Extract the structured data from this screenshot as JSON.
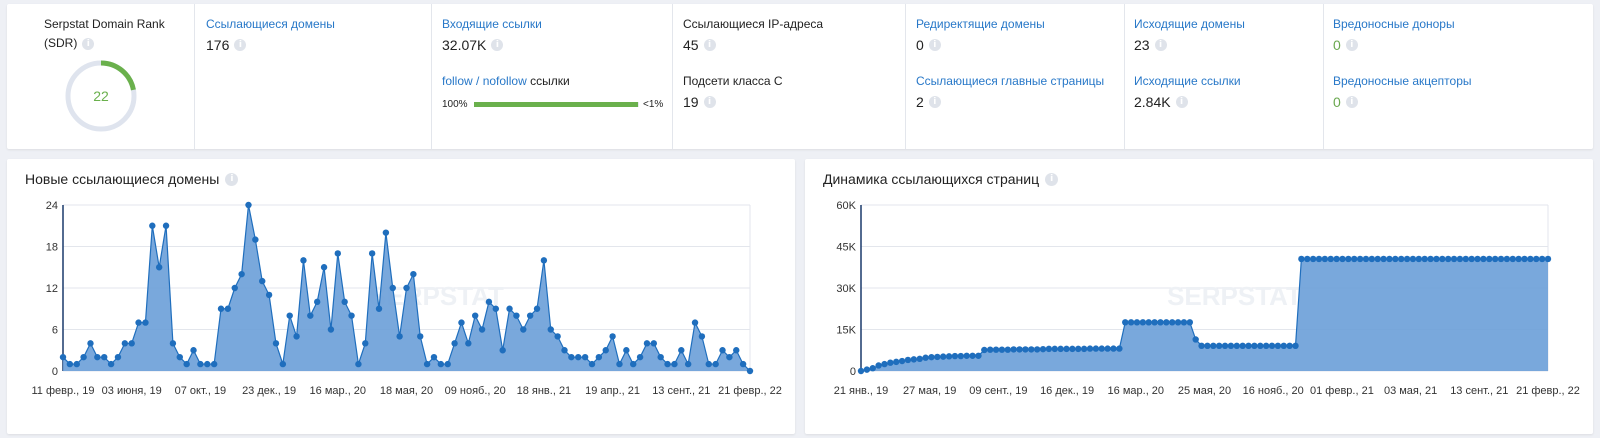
{
  "metrics": {
    "sdr": {
      "label_line1": "Serpstat Domain Rank",
      "label_line2": "(SDR)",
      "value": "22",
      "fraction": 0.22,
      "accent": "#6ab04c"
    },
    "ref_domains": {
      "label": "Ссылающиеся домены",
      "value": "176"
    },
    "backlinks": {
      "label": "Входящие ссылки",
      "value": "32.07K",
      "follow_label": "follow",
      "slash": " / ",
      "nofollow_label": "nofollow",
      "links_word": " ссылки",
      "follow_pct": "100%",
      "nofollow_pct": "<1%",
      "follow_fraction": 0.995
    },
    "ips": {
      "label": "Ссылающиеся IP-адреса",
      "value": "45",
      "subnets_label": "Подсети класса С",
      "subnets_value": "19"
    },
    "redirect": {
      "label": "Редиректящие домены",
      "value": "0",
      "main_pages_label": "Ссылающиеся главные страницы",
      "main_pages_value": "2"
    },
    "outgoing": {
      "label": "Исходящие домены",
      "value": "23",
      "links_label": "Исходящие ссылки",
      "links_value": "2.84K"
    },
    "malicious": {
      "donors_label": "Вредоносные доноры",
      "donors_value": "0",
      "acceptors_label": "Вредоносные акцепторы",
      "acceptors_value": "0"
    }
  },
  "watermark": "SERPSTAT",
  "chart_data": [
    {
      "type": "area",
      "title": "Новые ссылающиеся домены",
      "ylim": [
        0,
        24
      ],
      "yticks": [
        "0",
        "6",
        "12",
        "18",
        "24"
      ],
      "xticks": [
        "11 февр., 19",
        "03 июня, 19",
        "07 окт., 19",
        "23 дек., 19",
        "16 мар., 20",
        "18 мая, 20",
        "09 нояб., 20",
        "18 янв., 21",
        "19 апр., 21",
        "13 сент., 21",
        "21 февр., 22"
      ],
      "values": [
        2,
        1,
        1,
        2,
        4,
        2,
        2,
        1,
        2,
        4,
        4,
        7,
        7,
        21,
        15,
        21,
        4,
        2,
        1,
        3,
        1,
        1,
        1,
        9,
        9,
        12,
        14,
        24,
        19,
        13,
        11,
        4,
        1,
        8,
        5,
        16,
        8,
        10,
        15,
        6,
        17,
        10,
        8,
        1,
        4,
        17,
        9,
        20,
        12,
        5,
        12,
        14,
        5,
        1,
        2,
        1,
        1,
        4,
        7,
        4,
        8,
        6,
        10,
        9,
        3,
        9,
        8,
        6,
        8,
        9,
        16,
        6,
        5,
        3,
        2,
        2,
        2,
        1,
        2,
        3,
        5,
        1,
        3,
        1,
        2,
        4,
        4,
        2,
        1,
        1,
        3,
        1,
        7,
        5,
        1,
        1,
        3,
        2,
        3,
        1,
        0
      ],
      "grid": true,
      "color": "#1f6ebd"
    },
    {
      "type": "area",
      "title": "Динамика ссылающихся страниц",
      "ylim": [
        0,
        60000
      ],
      "yticks": [
        "0",
        "15K",
        "30K",
        "45K",
        "60K"
      ],
      "xticks": [
        "21 янв., 19",
        "27 мая, 19",
        "09 сент., 19",
        "16 дек., 19",
        "16 мар., 20",
        "25 мая, 20",
        "16 нояб., 20",
        "01 февр., 21",
        "03 мая, 21",
        "13 сент., 21",
        "21 февр., 22"
      ],
      "values": [
        0,
        500,
        1000,
        2000,
        2500,
        3000,
        3300,
        3600,
        4000,
        4200,
        4400,
        4800,
        5000,
        5100,
        5200,
        5300,
        5400,
        5400,
        5500,
        5500,
        5500,
        7600,
        7700,
        7700,
        7700,
        7700,
        7800,
        7800,
        7800,
        7800,
        7800,
        7900,
        8000,
        8000,
        8000,
        8000,
        8000,
        8000,
        8000,
        8100,
        8100,
        8100,
        8100,
        8100,
        8100,
        17600,
        17600,
        17600,
        17600,
        17600,
        17600,
        17600,
        17600,
        17600,
        17600,
        17600,
        17600,
        11400,
        9100,
        9100,
        9100,
        9100,
        9100,
        9100,
        9100,
        9100,
        9100,
        9100,
        9100,
        9100,
        9100,
        9100,
        9100,
        9100,
        9100,
        40500,
        40500,
        40500,
        40500,
        40500,
        40500,
        40500,
        40500,
        40500,
        40500,
        40500,
        40500,
        40500,
        40500,
        40500,
        40500,
        40500,
        40500,
        40500,
        40500,
        40500,
        40500,
        40500,
        40500,
        40500,
        40500,
        40500,
        40500,
        40500,
        40500,
        40500,
        40500,
        40500,
        40500,
        40500,
        40500,
        40500,
        40500,
        40500,
        40500,
        40500,
        40500,
        40500
      ],
      "grid": true,
      "color": "#1f6ebd"
    }
  ]
}
